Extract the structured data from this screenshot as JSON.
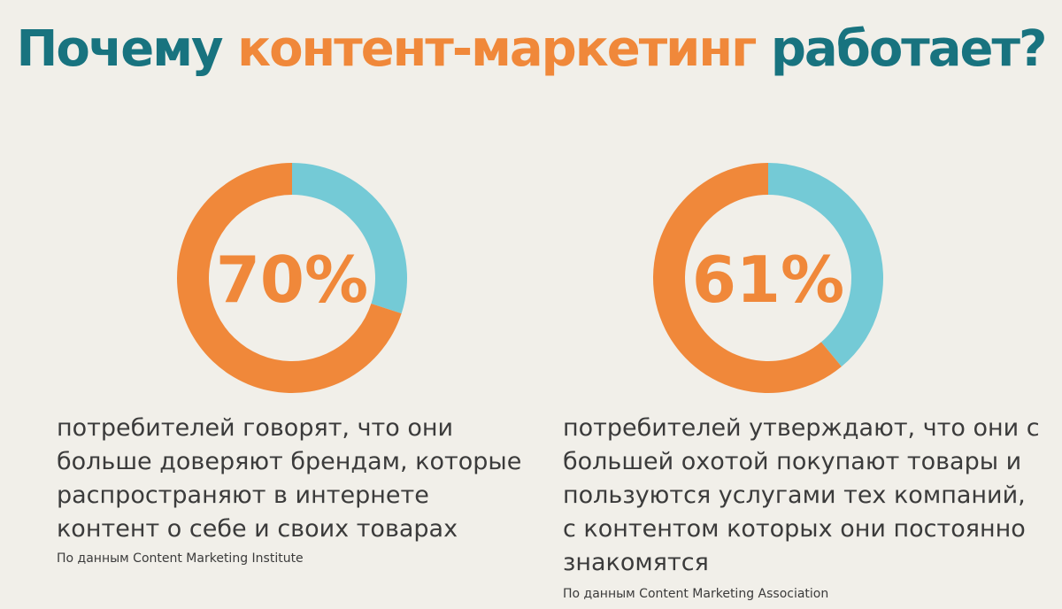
{
  "header": {
    "title_part1": "Почему ",
    "title_part2": "контент-маркетинг",
    "title_part3": " работает?"
  },
  "colors": {
    "teal": "#18737f",
    "orange": "#f0883a",
    "light_blue": "#74cad6",
    "background": "#f1efe9"
  },
  "chart_data": [
    {
      "type": "pie",
      "categories": [
        "потребителей",
        ""
      ],
      "values": [
        70,
        30
      ],
      "center_label": "70%",
      "description": "потребителей говорят, что они\nбольше доверяют брендам, которые\nраспространяют в интернете\nконтент о себе и своих товарах",
      "source": "По данным Content Marketing Institute"
    },
    {
      "type": "pie",
      "categories": [
        "потребителей",
        ""
      ],
      "values": [
        61,
        39
      ],
      "center_label": "61%",
      "description": "потребителей утверждают, что они с\nбольшей охотой покупают товары и\nпользуются услугами тех компаний,\nс контентом которых они постоянно\nзнакомятся",
      "source": "По данным Content Marketing Association"
    }
  ]
}
